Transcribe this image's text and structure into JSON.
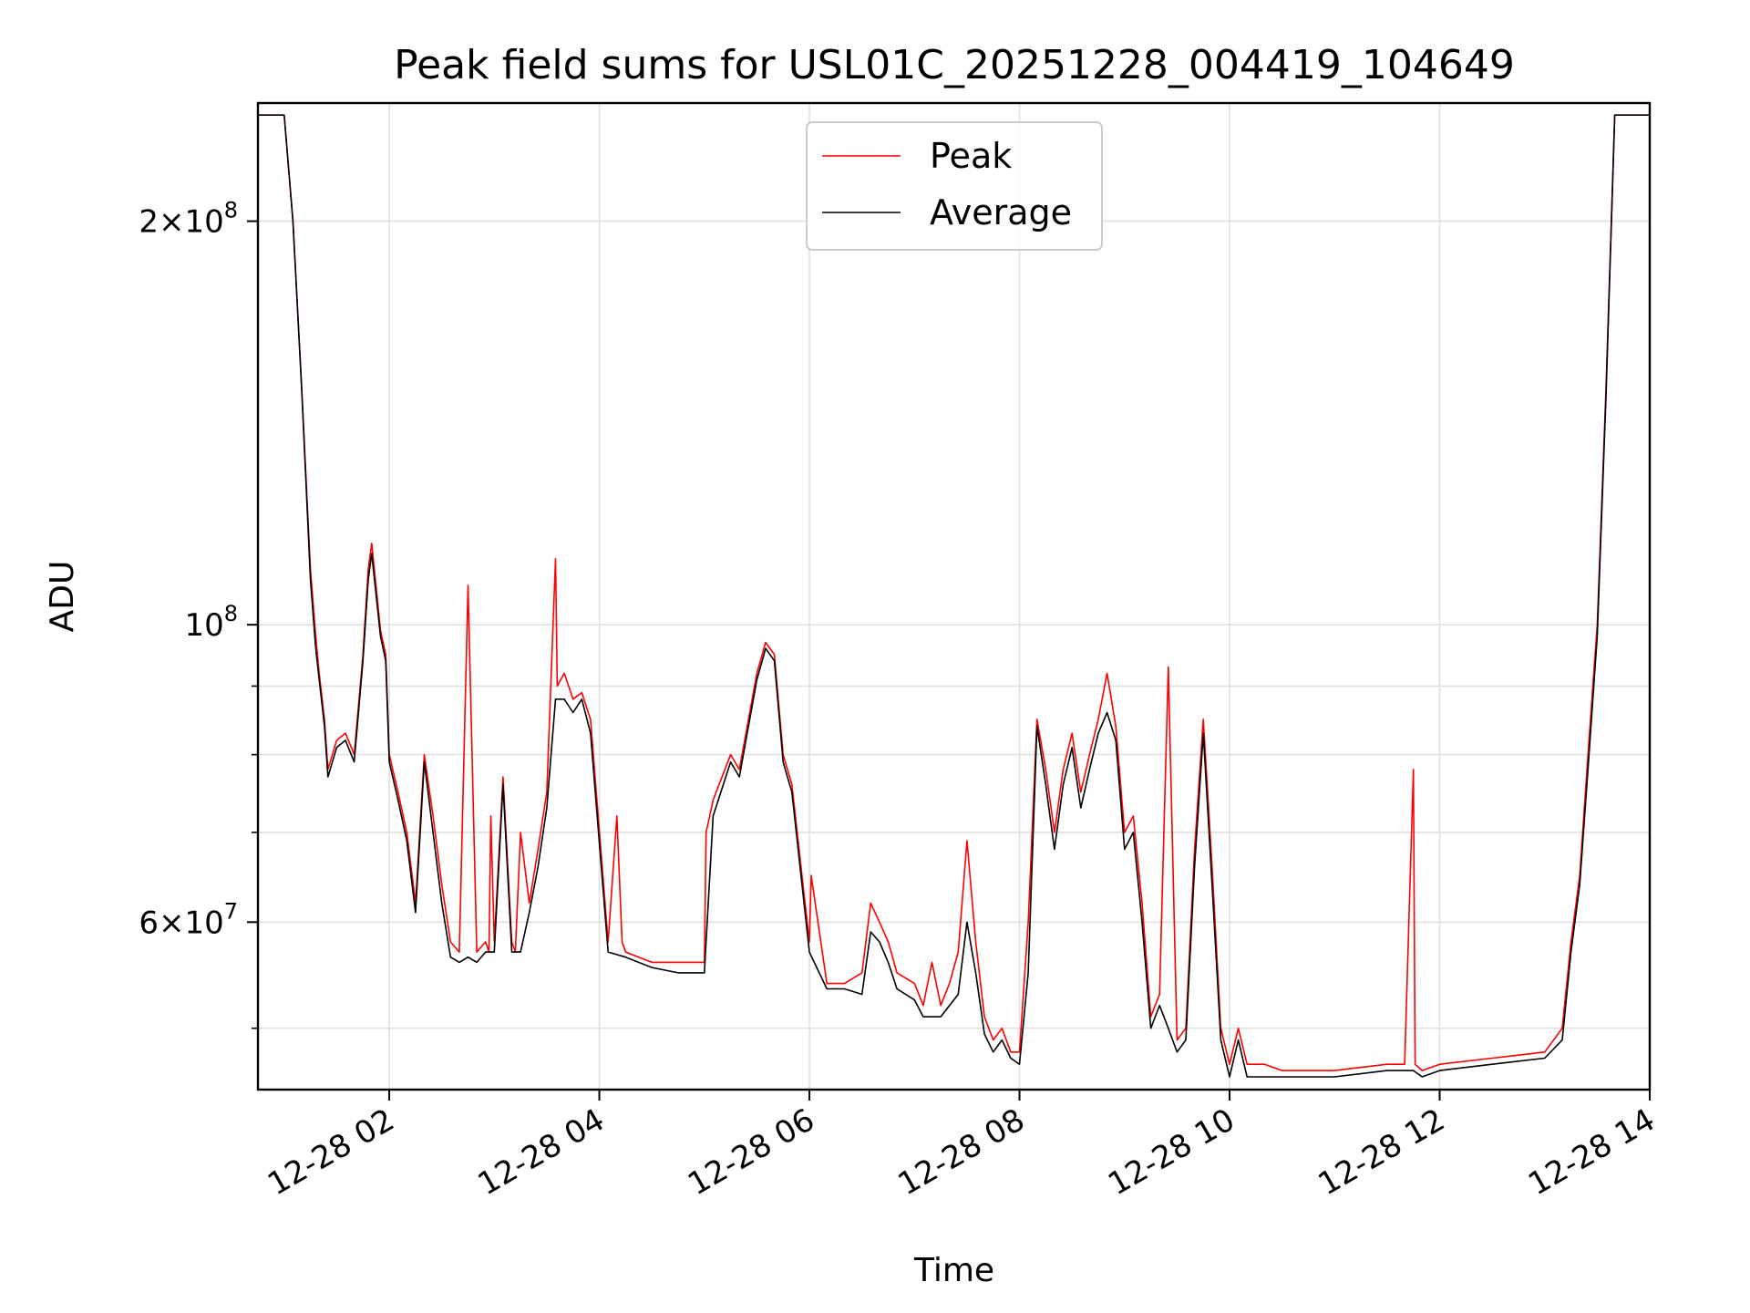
{
  "chart_data": {
    "type": "line",
    "title": "Peak field sums for USL01C_20251228_004419_104649",
    "xlabel": "Time",
    "ylabel": "ADU",
    "y_scale": "log",
    "ylim": [
      45000000,
      245000000
    ],
    "xlim": [
      "2025-12-28 00:45",
      "2025-12-28 14:00"
    ],
    "x_ticks": [
      "12-28 02",
      "12-28 04",
      "12-28 06",
      "12-28 08",
      "12-28 10",
      "12-28 12",
      "12-28 14"
    ],
    "y_ticks": [
      {
        "value": 200000000,
        "label": "2×10^8",
        "mantissa": "2",
        "exp": "8"
      },
      {
        "value": 100000000,
        "label": "10^8",
        "mantissa": "",
        "exp": "8"
      },
      {
        "value": 60000000,
        "label": "6×10^7",
        "mantissa": "6",
        "exp": "7"
      }
    ],
    "y_minor_ticks": [
      50000000,
      70000000,
      80000000,
      90000000
    ],
    "grid": true,
    "legend_position": "top-center",
    "series": [
      {
        "name": "Peak",
        "color": "#ff0000",
        "x": [
          "00:45",
          "01:00",
          "01:05",
          "01:10",
          "01:15",
          "01:18",
          "01:20",
          "01:23",
          "01:25",
          "01:30",
          "01:35",
          "01:40",
          "01:45",
          "01:48",
          "01:50",
          "01:55",
          "01:58",
          "02:00",
          "02:05",
          "02:10",
          "02:15",
          "02:20",
          "02:25",
          "02:30",
          "02:35",
          "02:40",
          "02:45",
          "02:50",
          "02:55",
          "02:57",
          "02:58",
          "03:00",
          "03:05",
          "03:10",
          "03:12",
          "03:15",
          "03:20",
          "03:25",
          "03:30",
          "03:35",
          "03:36",
          "03:40",
          "03:45",
          "03:50",
          "03:55",
          "04:05",
          "04:10",
          "04:13",
          "04:15",
          "04:30",
          "04:45",
          "05:00",
          "05:01",
          "05:05",
          "05:15",
          "05:20",
          "05:30",
          "05:35",
          "05:40",
          "05:45",
          "05:50",
          "06:00",
          "06:01",
          "06:10",
          "06:20",
          "06:30",
          "06:35",
          "06:40",
          "06:45",
          "06:50",
          "07:00",
          "07:05",
          "07:10",
          "07:15",
          "07:20",
          "07:25",
          "07:30",
          "07:35",
          "07:40",
          "07:45",
          "07:50",
          "07:55",
          "08:00",
          "08:05",
          "08:10",
          "08:15",
          "08:20",
          "08:25",
          "08:30",
          "08:35",
          "08:40",
          "08:45",
          "08:50",
          "08:55",
          "09:00",
          "09:05",
          "09:10",
          "09:15",
          "09:20",
          "09:25",
          "09:30",
          "09:35",
          "09:40",
          "09:45",
          "09:50",
          "09:55",
          "10:00",
          "10:05",
          "10:10",
          "10:20",
          "10:30",
          "11:00",
          "11:30",
          "11:40",
          "11:45",
          "11:46",
          "11:50",
          "12:00",
          "12:30",
          "13:00",
          "13:10",
          "13:15",
          "13:20",
          "13:25",
          "13:30",
          "13:35",
          "13:40",
          "13:45",
          "13:50",
          "14:00"
        ],
        "y": [
          240000000,
          240000000,
          200000000,
          150000000,
          110000000,
          98000000,
          92000000,
          85000000,
          78000000,
          82000000,
          83000000,
          80000000,
          95000000,
          110000000,
          115000000,
          99000000,
          95000000,
          80000000,
          75000000,
          70000000,
          62000000,
          80000000,
          72000000,
          64000000,
          58000000,
          57000000,
          107000000,
          57000000,
          58000000,
          57000000,
          72000000,
          58000000,
          77000000,
          58000000,
          57000000,
          70000000,
          62000000,
          68000000,
          75000000,
          112000000,
          90000000,
          92000000,
          88000000,
          89000000,
          85000000,
          58000000,
          72000000,
          58000000,
          57000000,
          56000000,
          56000000,
          56000000,
          70000000,
          74000000,
          80000000,
          78000000,
          92000000,
          97000000,
          95000000,
          80000000,
          76000000,
          58000000,
          65000000,
          54000000,
          54000000,
          55000000,
          62000000,
          60000000,
          58000000,
          55000000,
          54000000,
          52000000,
          56000000,
          52000000,
          54000000,
          57000000,
          69000000,
          58000000,
          51000000,
          49000000,
          50000000,
          48000000,
          48000000,
          60000000,
          85000000,
          78000000,
          70000000,
          78000000,
          83000000,
          75000000,
          80000000,
          85000000,
          92000000,
          84000000,
          70000000,
          72000000,
          62000000,
          51000000,
          53000000,
          93000000,
          49000000,
          50000000,
          68000000,
          85000000,
          66000000,
          50000000,
          47000000,
          50000000,
          47000000,
          47000000,
          46500000,
          46500000,
          47000000,
          47000000,
          78000000,
          47000000,
          46500000,
          47000000,
          47500000,
          48000000,
          50000000,
          58000000,
          65000000,
          81000000,
          100000000,
          150000000,
          240000000,
          240000000,
          240000000,
          240000000
        ]
      },
      {
        "name": "Average",
        "color": "#000000",
        "x": [
          "00:45",
          "01:00",
          "01:05",
          "01:10",
          "01:15",
          "01:18",
          "01:20",
          "01:23",
          "01:25",
          "01:30",
          "01:35",
          "01:40",
          "01:45",
          "01:48",
          "01:50",
          "01:55",
          "01:58",
          "02:00",
          "02:05",
          "02:10",
          "02:15",
          "02:20",
          "02:25",
          "02:30",
          "02:35",
          "02:40",
          "02:45",
          "02:50",
          "02:55",
          "03:00",
          "03:05",
          "03:10",
          "03:15",
          "03:20",
          "03:25",
          "03:30",
          "03:35",
          "03:40",
          "03:45",
          "03:50",
          "03:55",
          "04:05",
          "04:15",
          "04:30",
          "04:45",
          "05:00",
          "05:05",
          "05:15",
          "05:20",
          "05:30",
          "05:35",
          "05:40",
          "05:45",
          "05:50",
          "06:00",
          "06:10",
          "06:20",
          "06:30",
          "06:35",
          "06:40",
          "06:45",
          "06:50",
          "07:00",
          "07:05",
          "07:10",
          "07:15",
          "07:20",
          "07:25",
          "07:30",
          "07:35",
          "07:40",
          "07:45",
          "07:50",
          "07:55",
          "08:00",
          "08:05",
          "08:10",
          "08:15",
          "08:20",
          "08:25",
          "08:30",
          "08:35",
          "08:40",
          "08:45",
          "08:50",
          "08:55",
          "09:00",
          "09:05",
          "09:10",
          "09:15",
          "09:20",
          "09:25",
          "09:30",
          "09:35",
          "09:40",
          "09:45",
          "09:50",
          "09:55",
          "10:00",
          "10:05",
          "10:10",
          "10:20",
          "10:30",
          "11:00",
          "11:30",
          "11:40",
          "11:45",
          "11:50",
          "12:00",
          "12:30",
          "13:00",
          "13:10",
          "13:15",
          "13:20",
          "13:25",
          "13:30",
          "13:35",
          "13:40",
          "13:45",
          "13:50",
          "14:00"
        ],
        "y": [
          240000000,
          240000000,
          200000000,
          150000000,
          108000000,
          96000000,
          91000000,
          84000000,
          77000000,
          81000000,
          82000000,
          79000000,
          94000000,
          108000000,
          113000000,
          98000000,
          94000000,
          79000000,
          74000000,
          69000000,
          61000000,
          79000000,
          70000000,
          62000000,
          56500000,
          56000000,
          56500000,
          56000000,
          57000000,
          57000000,
          76000000,
          57000000,
          57000000,
          61000000,
          66000000,
          73000000,
          88000000,
          88000000,
          86000000,
          88000000,
          83000000,
          57000000,
          56500000,
          55500000,
          55000000,
          55000000,
          72000000,
          79000000,
          77000000,
          91000000,
          96000000,
          94000000,
          79000000,
          75000000,
          57000000,
          53500000,
          53500000,
          53000000,
          59000000,
          58000000,
          56000000,
          53500000,
          52500000,
          51000000,
          51000000,
          51000000,
          52000000,
          53000000,
          60000000,
          55000000,
          49500000,
          48000000,
          49000000,
          47500000,
          47000000,
          55000000,
          84000000,
          76000000,
          68000000,
          76000000,
          81000000,
          73000000,
          78000000,
          83000000,
          86000000,
          82000000,
          68000000,
          70000000,
          60000000,
          50000000,
          52000000,
          50000000,
          48000000,
          49000000,
          66000000,
          83000000,
          64000000,
          49000000,
          46000000,
          49000000,
          46000000,
          46000000,
          46000000,
          46000000,
          46500000,
          46500000,
          46500000,
          46000000,
          46500000,
          47000000,
          47500000,
          49000000,
          57000000,
          64000000,
          79000000,
          98000000,
          148000000,
          240000000,
          240000000,
          240000000,
          240000000
        ]
      }
    ]
  }
}
